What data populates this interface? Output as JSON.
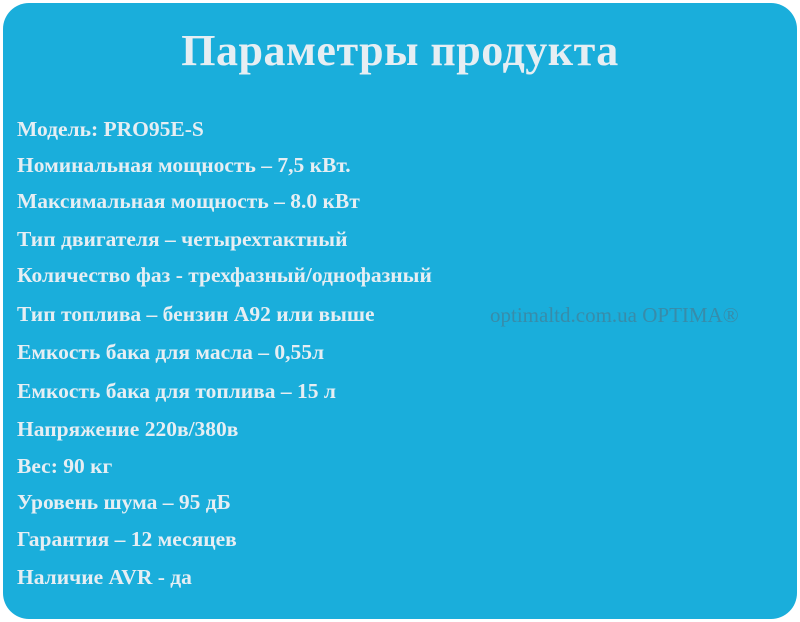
{
  "title": "Параметры продукта",
  "specs": [
    "Модель: PRO95E-S",
    "Номинальная мощность – 7,5 кВт.",
    "Максимальная мощность – 8.0 кВт",
    "Тип двигателя – четырехтактный",
    "Количество фаз - трехфазный/однофазный",
    "Тип топлива – бензин А92 или выше",
    "Емкость бака для масла – 0,55л",
    "Емкость бака для топлива – 15 л",
    "Напряжение 220в/380в",
    "Вес: 90 кг",
    "Уровень шума – 95 дБ",
    "Гарантия – 12 месяцев",
    "Наличие AVR - да"
  ],
  "watermark": "optimaltd.com.ua OPTIMA®",
  "colors": {
    "background": "#1aaedb",
    "text": "#e6eef3"
  }
}
